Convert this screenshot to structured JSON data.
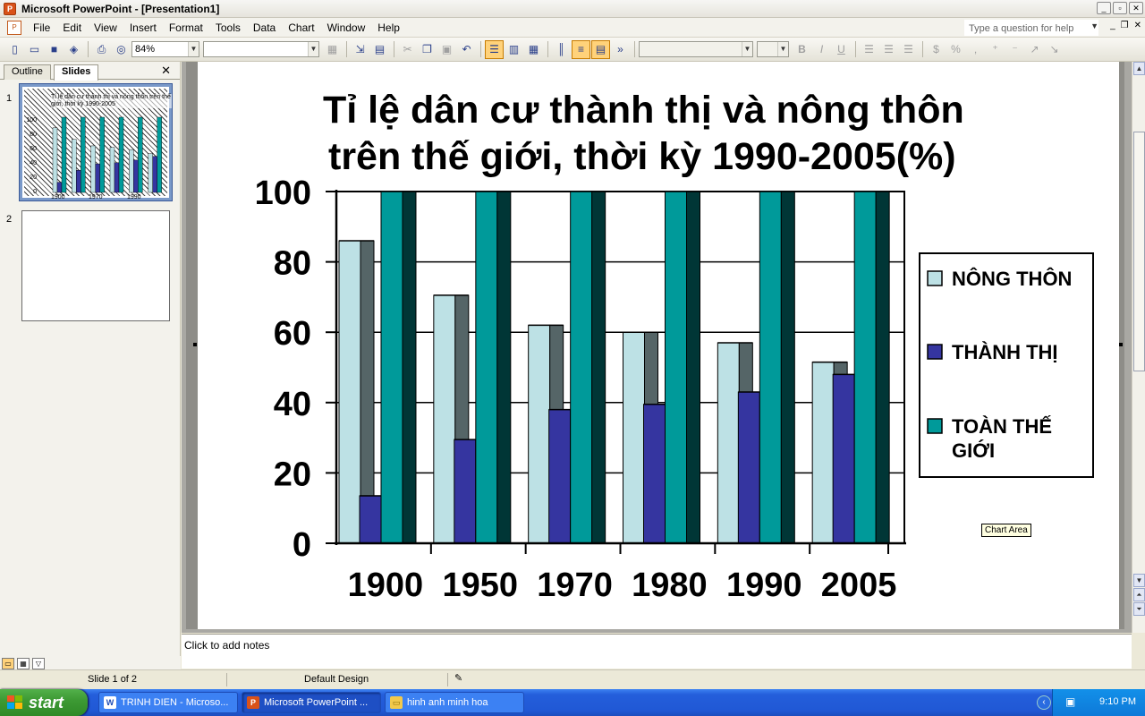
{
  "window": {
    "title": "Microsoft PowerPoint - [Presentation1]"
  },
  "menu": {
    "items": [
      "File",
      "Edit",
      "View",
      "Insert",
      "Format",
      "Tools",
      "Data",
      "Chart",
      "Window",
      "Help"
    ],
    "help_placeholder": "Type a question for help"
  },
  "toolbar": {
    "zoom": "84%"
  },
  "left_pane": {
    "tab_outline": "Outline",
    "tab_slides": "Slides",
    "slide_numbers": [
      "1",
      "2"
    ],
    "thumb_title": "Tỉ lệ dân cư thành thị và nông thôn trên thế giới, thời kỳ 1990-2005",
    "thumb_y_ticks": [
      "100",
      "80",
      "60",
      "40",
      "20",
      "0"
    ],
    "thumb_x_labels": [
      "1900",
      "1970",
      "1990"
    ]
  },
  "slide": {
    "title_line1": "Tỉ lệ dân cư thành thị và nông thôn",
    "title_line2": "trên thế giới, thời kỳ 1990-2005(%)",
    "tooltip": "Chart Area"
  },
  "chart_data": {
    "type": "bar",
    "title": "Tỉ lệ dân cư thành thị và nông thôn trên thế giới, thời kỳ 1990-2005(%)",
    "categories": [
      "1900",
      "1950",
      "1970",
      "1980",
      "1990",
      "2005"
    ],
    "series": [
      {
        "name": "NÔNG THÔN",
        "values": [
          86,
          70.5,
          62,
          60,
          57,
          51.5
        ],
        "color": "#bde1e5"
      },
      {
        "name": "THÀNH THỊ",
        "values": [
          13.5,
          29.5,
          38,
          39.5,
          43,
          48
        ],
        "color": "#3535a0"
      },
      {
        "name": "TOÀN THẾ GIỚI",
        "values": [
          100,
          100,
          100,
          100,
          100,
          100
        ],
        "color": "#009a9a"
      }
    ],
    "y_ticks": [
      "0",
      "20",
      "40",
      "60",
      "80",
      "100"
    ],
    "ylim": [
      0,
      100
    ],
    "grid": true,
    "legend": "right"
  },
  "notes": {
    "placeholder": "Click to add notes"
  },
  "status": {
    "slide": "Slide 1 of 2",
    "design": "Default Design"
  },
  "taskbar": {
    "start": "start",
    "tasks": [
      "TRINH DIEN - Microso...",
      "Microsoft PowerPoint ...",
      "hinh anh minh hoa"
    ],
    "clock": "9:10 PM"
  },
  "colors": {
    "taskbar": "#245edb",
    "start": "#3d9a34",
    "legend_rural": "#bde1e5",
    "legend_urban": "#3535a0",
    "legend_world": "#009a9a"
  }
}
